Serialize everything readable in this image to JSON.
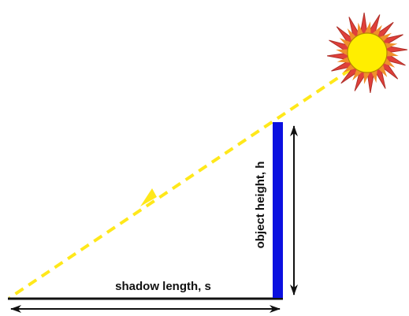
{
  "labels": {
    "shadow_length": "shadow length, s",
    "object_height": "object height, h"
  },
  "colors": {
    "object": "#0b10e0",
    "ground": "#111111",
    "sun_ray": "#ffe81a",
    "sun_core": "#ffee00",
    "sun_rays_outer": "#e0403a",
    "sun_rays_inner": "#f0902a",
    "arrows": "#111111"
  },
  "icons": {
    "sun": "sun-icon"
  }
}
